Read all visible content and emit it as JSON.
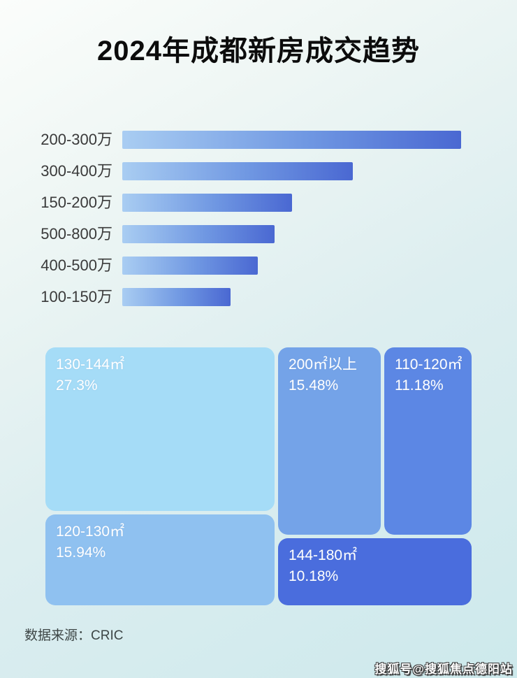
{
  "title": "2024年成都新房成交趋势",
  "source": "数据来源：CRIC",
  "watermark": "搜狐号@搜狐焦点德阳站",
  "colors": {
    "bar_gradient_start": "#A9CDF2",
    "bar_gradient_mid": "#6F97E2",
    "bar_gradient_end": "#4A68D2",
    "bar_label_text": "#3A3A3A",
    "treemap_text": "#FFFFFF",
    "title_text": "#0C0C0C",
    "background_start": "#FBFDFB",
    "background_end": "#CDE9EC"
  },
  "bar_chart": {
    "rows": [
      {
        "label": "200-300万",
        "length_pct": 100
      },
      {
        "label": "300-400万",
        "length_pct": 68
      },
      {
        "label": "150-200万",
        "length_pct": 50
      },
      {
        "label": "500-800万",
        "length_pct": 45
      },
      {
        "label": "400-500万",
        "length_pct": 40
      },
      {
        "label": "100-150万",
        "length_pct": 32
      }
    ]
  },
  "treemap": {
    "blocks": [
      {
        "label": "130-144㎡",
        "value": "27.3%",
        "color": "#A5DCF7"
      },
      {
        "label": "120-130㎡",
        "value": "15.94%",
        "color": "#8FC1F0"
      },
      {
        "label": "200㎡以上",
        "value": "15.48%",
        "color": "#74A3E8"
      },
      {
        "label": "110-120㎡",
        "value": "11.18%",
        "color": "#5C87E4"
      },
      {
        "label": "144-180㎡",
        "value": "10.18%",
        "color": "#4A6DDD"
      }
    ]
  },
  "chart_data": [
    {
      "type": "bar",
      "orientation": "horizontal",
      "title": "2024年成都新房成交趋势",
      "categories": [
        "200-300万",
        "300-400万",
        "150-200万",
        "500-800万",
        "400-500万",
        "100-150万"
      ],
      "values": [
        100,
        68,
        50,
        45,
        40,
        32
      ],
      "values_note": "no numeric axis or data labels shown in image; values are bar lengths as percent of the longest bar",
      "xlabel": "",
      "ylabel": "",
      "grid": false,
      "legend": false
    },
    {
      "type": "treemap",
      "title": "",
      "items": [
        {
          "label": "130-144㎡",
          "value_pct": 27.3
        },
        {
          "label": "120-130㎡",
          "value_pct": 15.94
        },
        {
          "label": "200㎡以上",
          "value_pct": 15.48
        },
        {
          "label": "110-120㎡",
          "value_pct": 11.18
        },
        {
          "label": "144-180㎡",
          "value_pct": 10.18
        }
      ],
      "legend": false,
      "source": "数据来源：CRIC"
    }
  ]
}
